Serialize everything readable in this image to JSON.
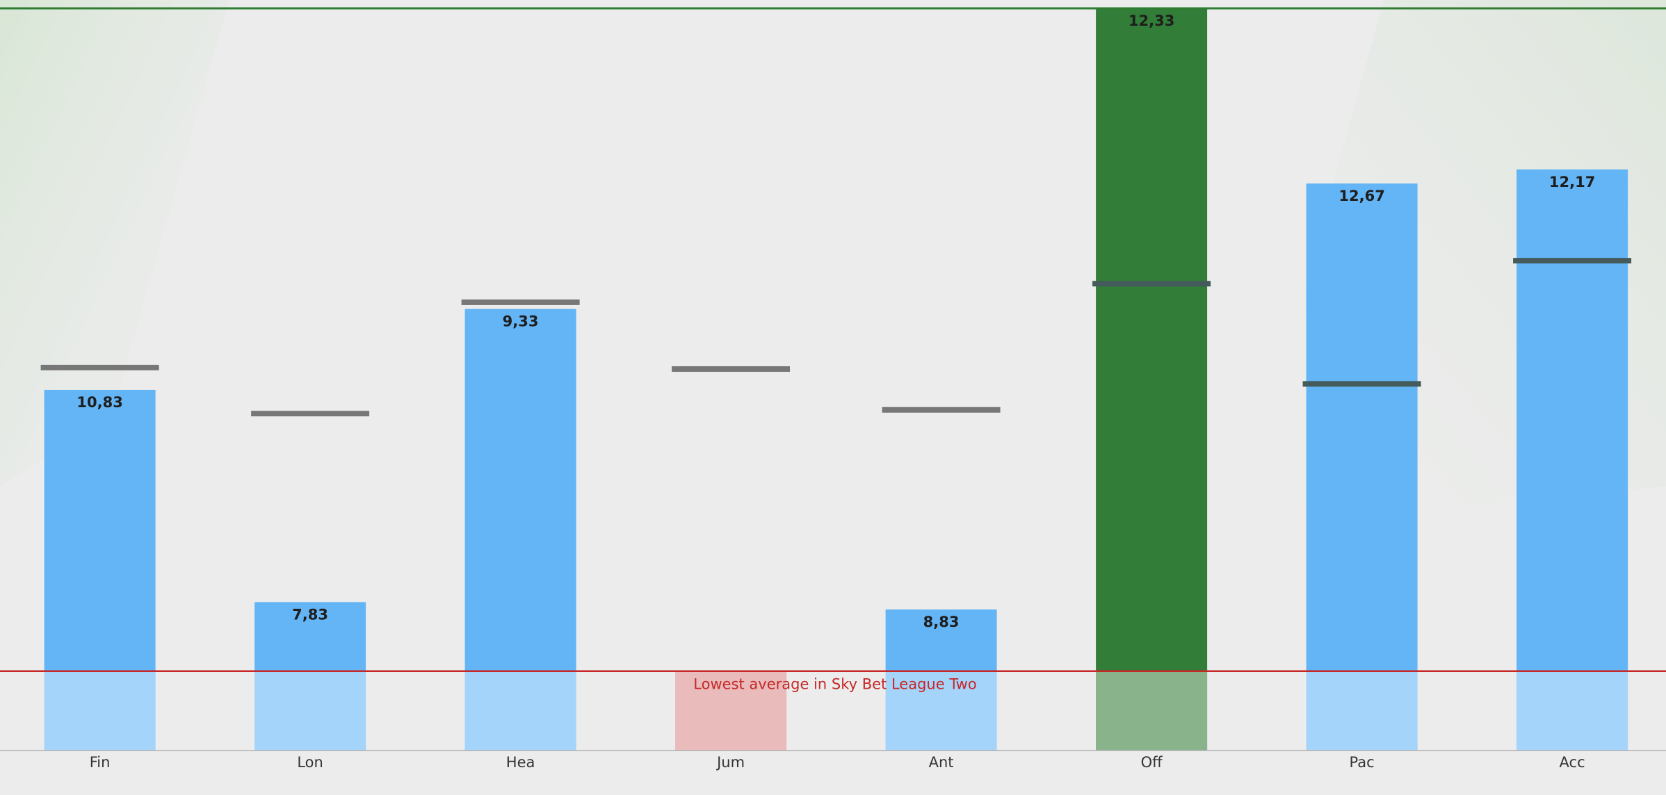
{
  "chart_data": {
    "type": "bar",
    "categories": [
      "Fin",
      "Lon",
      "Hea",
      "Jum",
      "Ant",
      "Off",
      "Pac",
      "Acc"
    ],
    "values": [
      48.6,
      20.0,
      59.5,
      10.7,
      19.0,
      100,
      76.4,
      78.3
    ],
    "labels": [
      "10,83",
      "7,83",
      "9,33",
      null,
      "8,83",
      "12,33",
      "12,67",
      "12,17"
    ],
    "colors": [
      "#64b5f6",
      "#64b5f6",
      "#64b5f6",
      "#d98a8a",
      "#64b5f6",
      "#327d38",
      "#64b5f6",
      "#64b5f6"
    ],
    "markers": [
      51.6,
      45.4,
      60.4,
      51.4,
      45.9,
      62.9,
      49.4,
      66.0
    ],
    "reference_line": {
      "value": 10.7,
      "label": "Lowest average in Sky Bet League Two",
      "color": "#c62828"
    },
    "top_line_color": "#2e7d32",
    "ylim": [
      0,
      100
    ]
  }
}
